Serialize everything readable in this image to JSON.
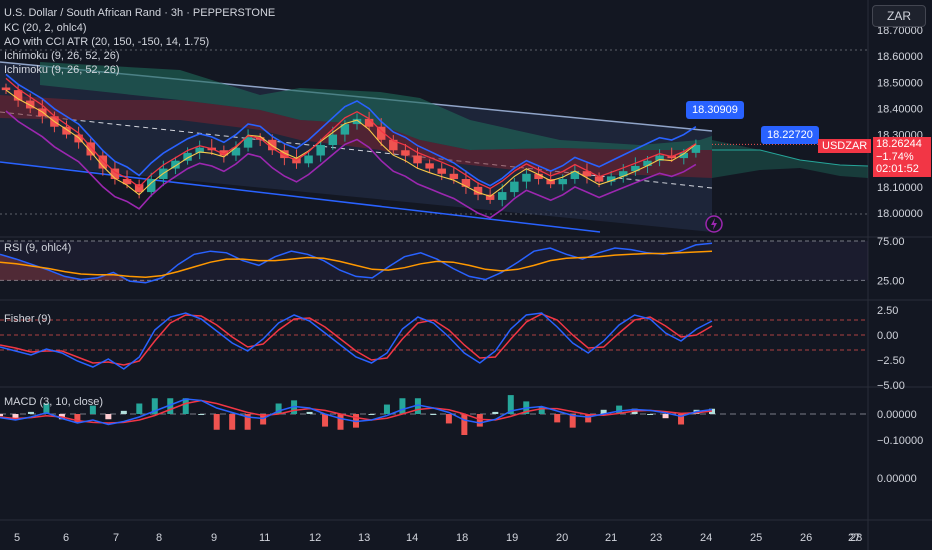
{
  "header": {
    "title": "U.S. Dollar / South African Rand · 3h · PEPPERSTONE",
    "indicators": [
      "KC (20, 2, ohlc4)",
      "AO with CCI ATR (20, 150, -150, 14, 1.75)",
      "Ichimoku (9, 26, 52, 26)",
      "Ichimoku (9, 26, 52, 26)"
    ],
    "currency": "ZAR"
  },
  "price_tags": {
    "upper": "18.30909",
    "mid": "18.22720",
    "symbol": "USDZAR",
    "last": "18.26244",
    "change": "−1.74%",
    "countdown": "02:01:52"
  },
  "panes": {
    "rsi_label": "RSI (9, ohlc4)",
    "fisher_label": "Fisher (9)",
    "macd_label": "MACD (3, 10, close)"
  },
  "colors": {
    "bg": "#131722",
    "up": "#26a69a",
    "down": "#ef5350",
    "kc": "#2962ff",
    "ichimoku_kijun": "#f23645",
    "tenkan": "#f7c948",
    "rsi": "#2962ff",
    "rsi_ma": "#ff9800",
    "fisher": "#2962ff",
    "fisher_trigger": "#f23645",
    "macd": "#2962ff",
    "signal": "#f23645",
    "cloud_green": "#1f6b5a",
    "cloud_red": "#7a2230",
    "channel": "#90a4c8",
    "purple": "#9c27b0"
  },
  "chart_data": [
    {
      "type": "candlestick",
      "title": "U.S. Dollar / South African Rand · 3h · PEPPERSTONE",
      "x_ticks": [
        "5",
        "6",
        "7",
        "8",
        "9",
        "11",
        "12",
        "13",
        "14",
        "18",
        "19",
        "20",
        "21",
        "23",
        "24",
        "25",
        "26",
        "27",
        "28"
      ],
      "y_ticks": [
        "18.70000",
        "18.60000",
        "18.50000",
        "18.40000",
        "18.30000",
        "18.20000",
        "18.10000",
        "18.00000"
      ],
      "ylim": [
        17.95,
        18.72
      ],
      "close_series": [
        18.47,
        18.43,
        18.4,
        18.37,
        18.33,
        18.3,
        18.27,
        18.22,
        18.17,
        18.13,
        18.11,
        18.08,
        18.13,
        18.17,
        18.2,
        18.23,
        18.25,
        18.24,
        18.22,
        18.25,
        18.29,
        18.28,
        18.24,
        18.21,
        18.19,
        18.22,
        18.26,
        18.3,
        18.34,
        18.36,
        18.33,
        18.28,
        18.24,
        18.22,
        18.19,
        18.17,
        18.15,
        18.13,
        18.1,
        18.07,
        18.05,
        18.08,
        18.12,
        18.15,
        18.13,
        18.11,
        18.13,
        18.16,
        18.14,
        18.12,
        18.14,
        18.16,
        18.18,
        18.2,
        18.22,
        18.21,
        18.23,
        18.26
      ],
      "last_price": 18.26244,
      "labels": [
        "18.30909",
        "18.22720"
      ]
    },
    {
      "type": "line",
      "title": "RSI (9, ohlc4)",
      "y_ticks": [
        "75.00",
        "25.00"
      ],
      "ylim": [
        0,
        80
      ],
      "series": [
        {
          "values": [
            58,
            52,
            45,
            38,
            30,
            26,
            28,
            35,
            24,
            22,
            28,
            45,
            58,
            62,
            60,
            50,
            44,
            55,
            62,
            58,
            50,
            38,
            30,
            28,
            42,
            55,
            60,
            52,
            40,
            30,
            26,
            35,
            48,
            62,
            66,
            58,
            52,
            60,
            66,
            64,
            60,
            58,
            62,
            70,
            72
          ]
        },
        {
          "values": [
            48,
            46,
            43,
            40,
            36,
            33,
            32,
            32,
            30,
            29,
            31,
            36,
            42,
            48,
            52,
            52,
            50,
            50,
            52,
            54,
            53,
            49,
            44,
            39,
            38,
            41,
            46,
            49,
            48,
            44,
            39,
            37,
            39,
            44,
            50,
            53,
            54,
            55,
            57,
            58,
            59,
            59,
            60,
            61,
            62
          ]
        }
      ]
    },
    {
      "type": "line",
      "title": "Fisher (9)",
      "y_ticks": [
        "2.50",
        "0.00",
        "−2.50",
        "−5.00"
      ],
      "ylim": [
        -5,
        3
      ],
      "series": [
        {
          "values": [
            -1.2,
            -1.6,
            -2.0,
            -1.4,
            -1.8,
            -2.6,
            -3.2,
            -2.4,
            -3.4,
            -2.2,
            0.5,
            1.8,
            2.2,
            1.6,
            0.4,
            -0.8,
            -1.6,
            -0.4,
            1.2,
            2.0,
            1.4,
            0.2,
            -1.0,
            -2.2,
            -2.8,
            -1.8,
            0.6,
            1.8,
            1.2,
            -0.2,
            -1.8,
            -2.8,
            -1.6,
            0.6,
            2.0,
            2.2,
            0.8,
            -0.8,
            -1.8,
            -0.6,
            1.0,
            2.0,
            1.6,
            0.2,
            -0.6,
            0.6,
            1.4
          ]
        },
        {
          "values": [
            -1.0,
            -1.3,
            -1.7,
            -1.6,
            -1.6,
            -2.2,
            -2.8,
            -2.7,
            -3.0,
            -2.6,
            -0.6,
            1.2,
            2.0,
            1.9,
            1.0,
            -0.2,
            -1.2,
            -0.9,
            0.5,
            1.6,
            1.7,
            0.8,
            -0.4,
            -1.6,
            -2.5,
            -2.3,
            -0.4,
            1.2,
            1.5,
            0.5,
            -1.0,
            -2.3,
            -2.2,
            -0.4,
            1.3,
            2.1,
            1.5,
            0.0,
            -1.3,
            -1.2,
            0.2,
            1.5,
            1.8,
            0.9,
            -0.2,
            0.0,
            0.9
          ]
        }
      ]
    },
    {
      "type": "bar",
      "title": "MACD (3, 10, close)",
      "y_ticks": [
        "0.00000",
        "−0.10000",
        "0.00000"
      ],
      "ylim": [
        -0.14,
        0.08
      ],
      "series": [
        {
          "values": [
            -0.012,
            -0.02,
            -0.01,
            0.004,
            -0.015,
            -0.03,
            -0.02,
            -0.035,
            -0.025,
            -0.01,
            0.01,
            0.03,
            0.05,
            0.045,
            0.02,
            0.005,
            -0.01,
            -0.015,
            0.01,
            0.025,
            0.02,
            0.0,
            -0.015,
            -0.025,
            -0.02,
            -0.005,
            0.015,
            0.03,
            0.02,
            0.005,
            -0.02,
            -0.03,
            -0.018,
            0.01,
            0.02,
            0.025,
            0.01,
            -0.005,
            -0.01,
            0.0,
            0.01,
            0.015,
            0.012,
            0.004,
            -0.008,
            0.008,
            0.015
          ]
        },
        {
          "values": [
            -0.01,
            -0.015,
            -0.012,
            -0.006,
            -0.01,
            -0.022,
            -0.028,
            -0.03,
            -0.028,
            -0.02,
            -0.005,
            0.015,
            0.035,
            0.045,
            0.035,
            0.02,
            0.005,
            -0.005,
            0.0,
            0.012,
            0.018,
            0.012,
            0.0,
            -0.012,
            -0.02,
            -0.014,
            0.0,
            0.015,
            0.02,
            0.014,
            0.0,
            -0.018,
            -0.02,
            -0.008,
            0.008,
            0.018,
            0.018,
            0.008,
            -0.002,
            -0.004,
            0.002,
            0.01,
            0.012,
            0.008,
            0.002,
            0.004,
            0.01
          ]
        }
      ]
    }
  ]
}
